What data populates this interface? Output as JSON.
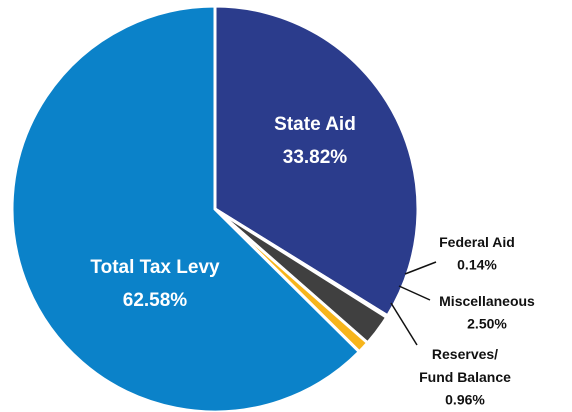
{
  "chart_data": {
    "type": "pie",
    "categories": [
      "State Aid",
      "Federal Aid",
      "Miscellaneous",
      "Reserves/\nFund Balance",
      "Total Tax Levy"
    ],
    "values": [
      33.82,
      0.14,
      2.5,
      0.96,
      62.58
    ],
    "value_labels": [
      "33.82%",
      "0.14%",
      "2.50%",
      "0.96%",
      "62.58%"
    ],
    "colors": [
      "#2b3c8c",
      "#d2232a",
      "#404040",
      "#f7b51b",
      "#0b82c9"
    ]
  }
}
